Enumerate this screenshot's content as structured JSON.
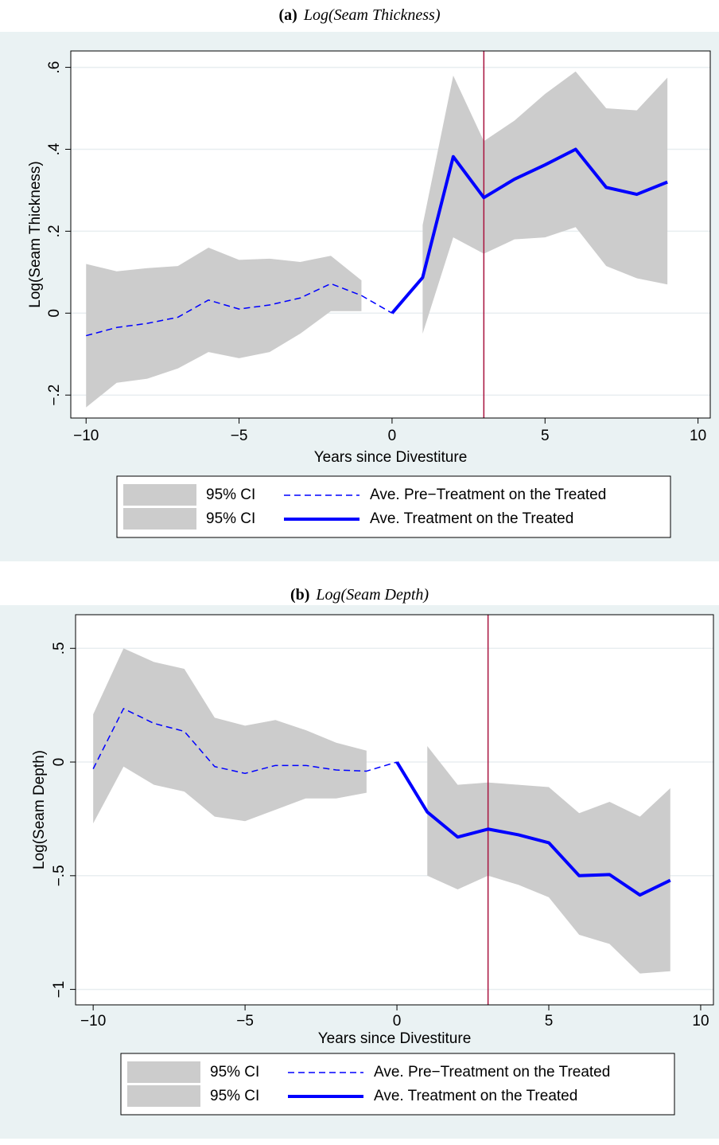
{
  "chart_data": [
    {
      "type": "line",
      "label": "(a)",
      "title": "Log(Seam Thickness)",
      "xlabel": "Years since Divestiture",
      "ylabel": "Log(Seam Thickness)",
      "xlim": [
        -10.5,
        10.4
      ],
      "ylim": [
        -0.256,
        0.64
      ],
      "xticks": [
        {
          "value": -10,
          "label": "−10"
        },
        {
          "value": -5,
          "label": "−5"
        },
        0,
        5,
        10
      ],
      "yticks": [
        {
          "value": -0.2,
          "label": "−.2"
        },
        0,
        {
          "value": 0.2,
          "label": ".2"
        },
        {
          "value": 0.4,
          "label": ".4"
        },
        {
          "value": 0.6,
          "label": ".6"
        }
      ],
      "grid": true,
      "vline": 3,
      "vline_color": "#a8123e",
      "bands": [
        {
          "name": "95% CI",
          "color": "#cccccc",
          "x": [
            -10,
            -9,
            -8,
            -7,
            -6,
            -5,
            -4,
            -3,
            -2,
            -1
          ],
          "lower": [
            -0.23,
            -0.17,
            -0.16,
            -0.135,
            -0.095,
            -0.11,
            -0.095,
            -0.05,
            0.005,
            0.005
          ],
          "upper": [
            0.12,
            0.102,
            0.11,
            0.115,
            0.16,
            0.13,
            0.133,
            0.125,
            0.14,
            0.08
          ]
        },
        {
          "name": "95% CI",
          "color": "#cccccc",
          "x": [
            1,
            2,
            3,
            4,
            5,
            6,
            7,
            8,
            9
          ],
          "lower": [
            -0.05,
            0.185,
            0.145,
            0.18,
            0.185,
            0.21,
            0.115,
            0.085,
            0.07
          ],
          "upper": [
            0.215,
            0.58,
            0.42,
            0.47,
            0.535,
            0.59,
            0.5,
            0.495,
            0.575
          ]
        }
      ],
      "series": [
        {
          "name": "Ave. Pre−Treatment on the Treated",
          "color": "#0000ff",
          "dash": true,
          "x": [
            -10,
            -9,
            -8,
            -7,
            -6,
            -5,
            -4,
            -3,
            -2,
            -1,
            0
          ],
          "values": [
            -0.055,
            -0.035,
            -0.025,
            -0.01,
            0.032,
            0.01,
            0.02,
            0.037,
            0.072,
            0.043,
            0
          ]
        },
        {
          "name": "Ave. Treatment on the Treated",
          "color": "#0000ff",
          "dash": false,
          "x": [
            0,
            1,
            2,
            3,
            4,
            5,
            6,
            7,
            8,
            9
          ],
          "values": [
            0,
            0.087,
            0.382,
            0.282,
            0.327,
            0.362,
            0.4,
            0.307,
            0.29,
            0.32
          ]
        }
      ]
    },
    {
      "type": "line",
      "label": "(b)",
      "title": "Log(Seam Depth)",
      "xlabel": "Years since Divestiture",
      "ylabel": "Log(Seam Depth)",
      "xlim": [
        -10.58,
        10.42
      ],
      "ylim": [
        -1.068,
        0.648
      ],
      "xticks": [
        {
          "value": -10,
          "label": "−10"
        },
        {
          "value": -5,
          "label": "−5"
        },
        0,
        5,
        10
      ],
      "yticks": [
        {
          "value": -1,
          "label": "−1"
        },
        {
          "value": -0.5,
          "label": "−.5"
        },
        0,
        {
          "value": 0.5,
          "label": ".5"
        }
      ],
      "grid": true,
      "vline": 3,
      "vline_color": "#a8123e",
      "bands": [
        {
          "name": "95% CI",
          "color": "#cccccc",
          "x": [
            -10,
            -9,
            -8,
            -7,
            -6,
            -5,
            -4,
            -3,
            -2,
            -1
          ],
          "lower": [
            -0.27,
            -0.02,
            -0.1,
            -0.13,
            -0.24,
            -0.26,
            -0.21,
            -0.16,
            -0.16,
            -0.135
          ],
          "upper": [
            0.21,
            0.5,
            0.44,
            0.41,
            0.195,
            0.16,
            0.185,
            0.14,
            0.085,
            0.05
          ]
        },
        {
          "name": "95% CI",
          "color": "#cccccc",
          "x": [
            1,
            2,
            3,
            4,
            5,
            6,
            7,
            8,
            9
          ],
          "lower": [
            -0.5,
            -0.56,
            -0.5,
            -0.54,
            -0.595,
            -0.76,
            -0.8,
            -0.93,
            -0.92
          ],
          "upper": [
            0.07,
            -0.1,
            -0.09,
            -0.1,
            -0.11,
            -0.225,
            -0.175,
            -0.24,
            -0.115
          ]
        }
      ],
      "series": [
        {
          "name": "Ave. Pre−Treatment on the Treated",
          "color": "#0000ff",
          "dash": true,
          "x": [
            -10,
            -9,
            -8,
            -7,
            -6,
            -5,
            -4,
            -3,
            -2,
            -1,
            0
          ],
          "values": [
            -0.03,
            0.235,
            0.17,
            0.135,
            -0.02,
            -0.05,
            -0.015,
            -0.015,
            -0.035,
            -0.04,
            0
          ]
        },
        {
          "name": "Ave. Treatment on the Treated",
          "color": "#0000ff",
          "dash": false,
          "x": [
            0,
            1,
            2,
            3,
            4,
            5,
            6,
            7,
            8,
            9
          ],
          "values": [
            0,
            -0.22,
            -0.33,
            -0.295,
            -0.32,
            -0.355,
            -0.5,
            -0.495,
            -0.585,
            -0.52
          ]
        }
      ]
    }
  ]
}
